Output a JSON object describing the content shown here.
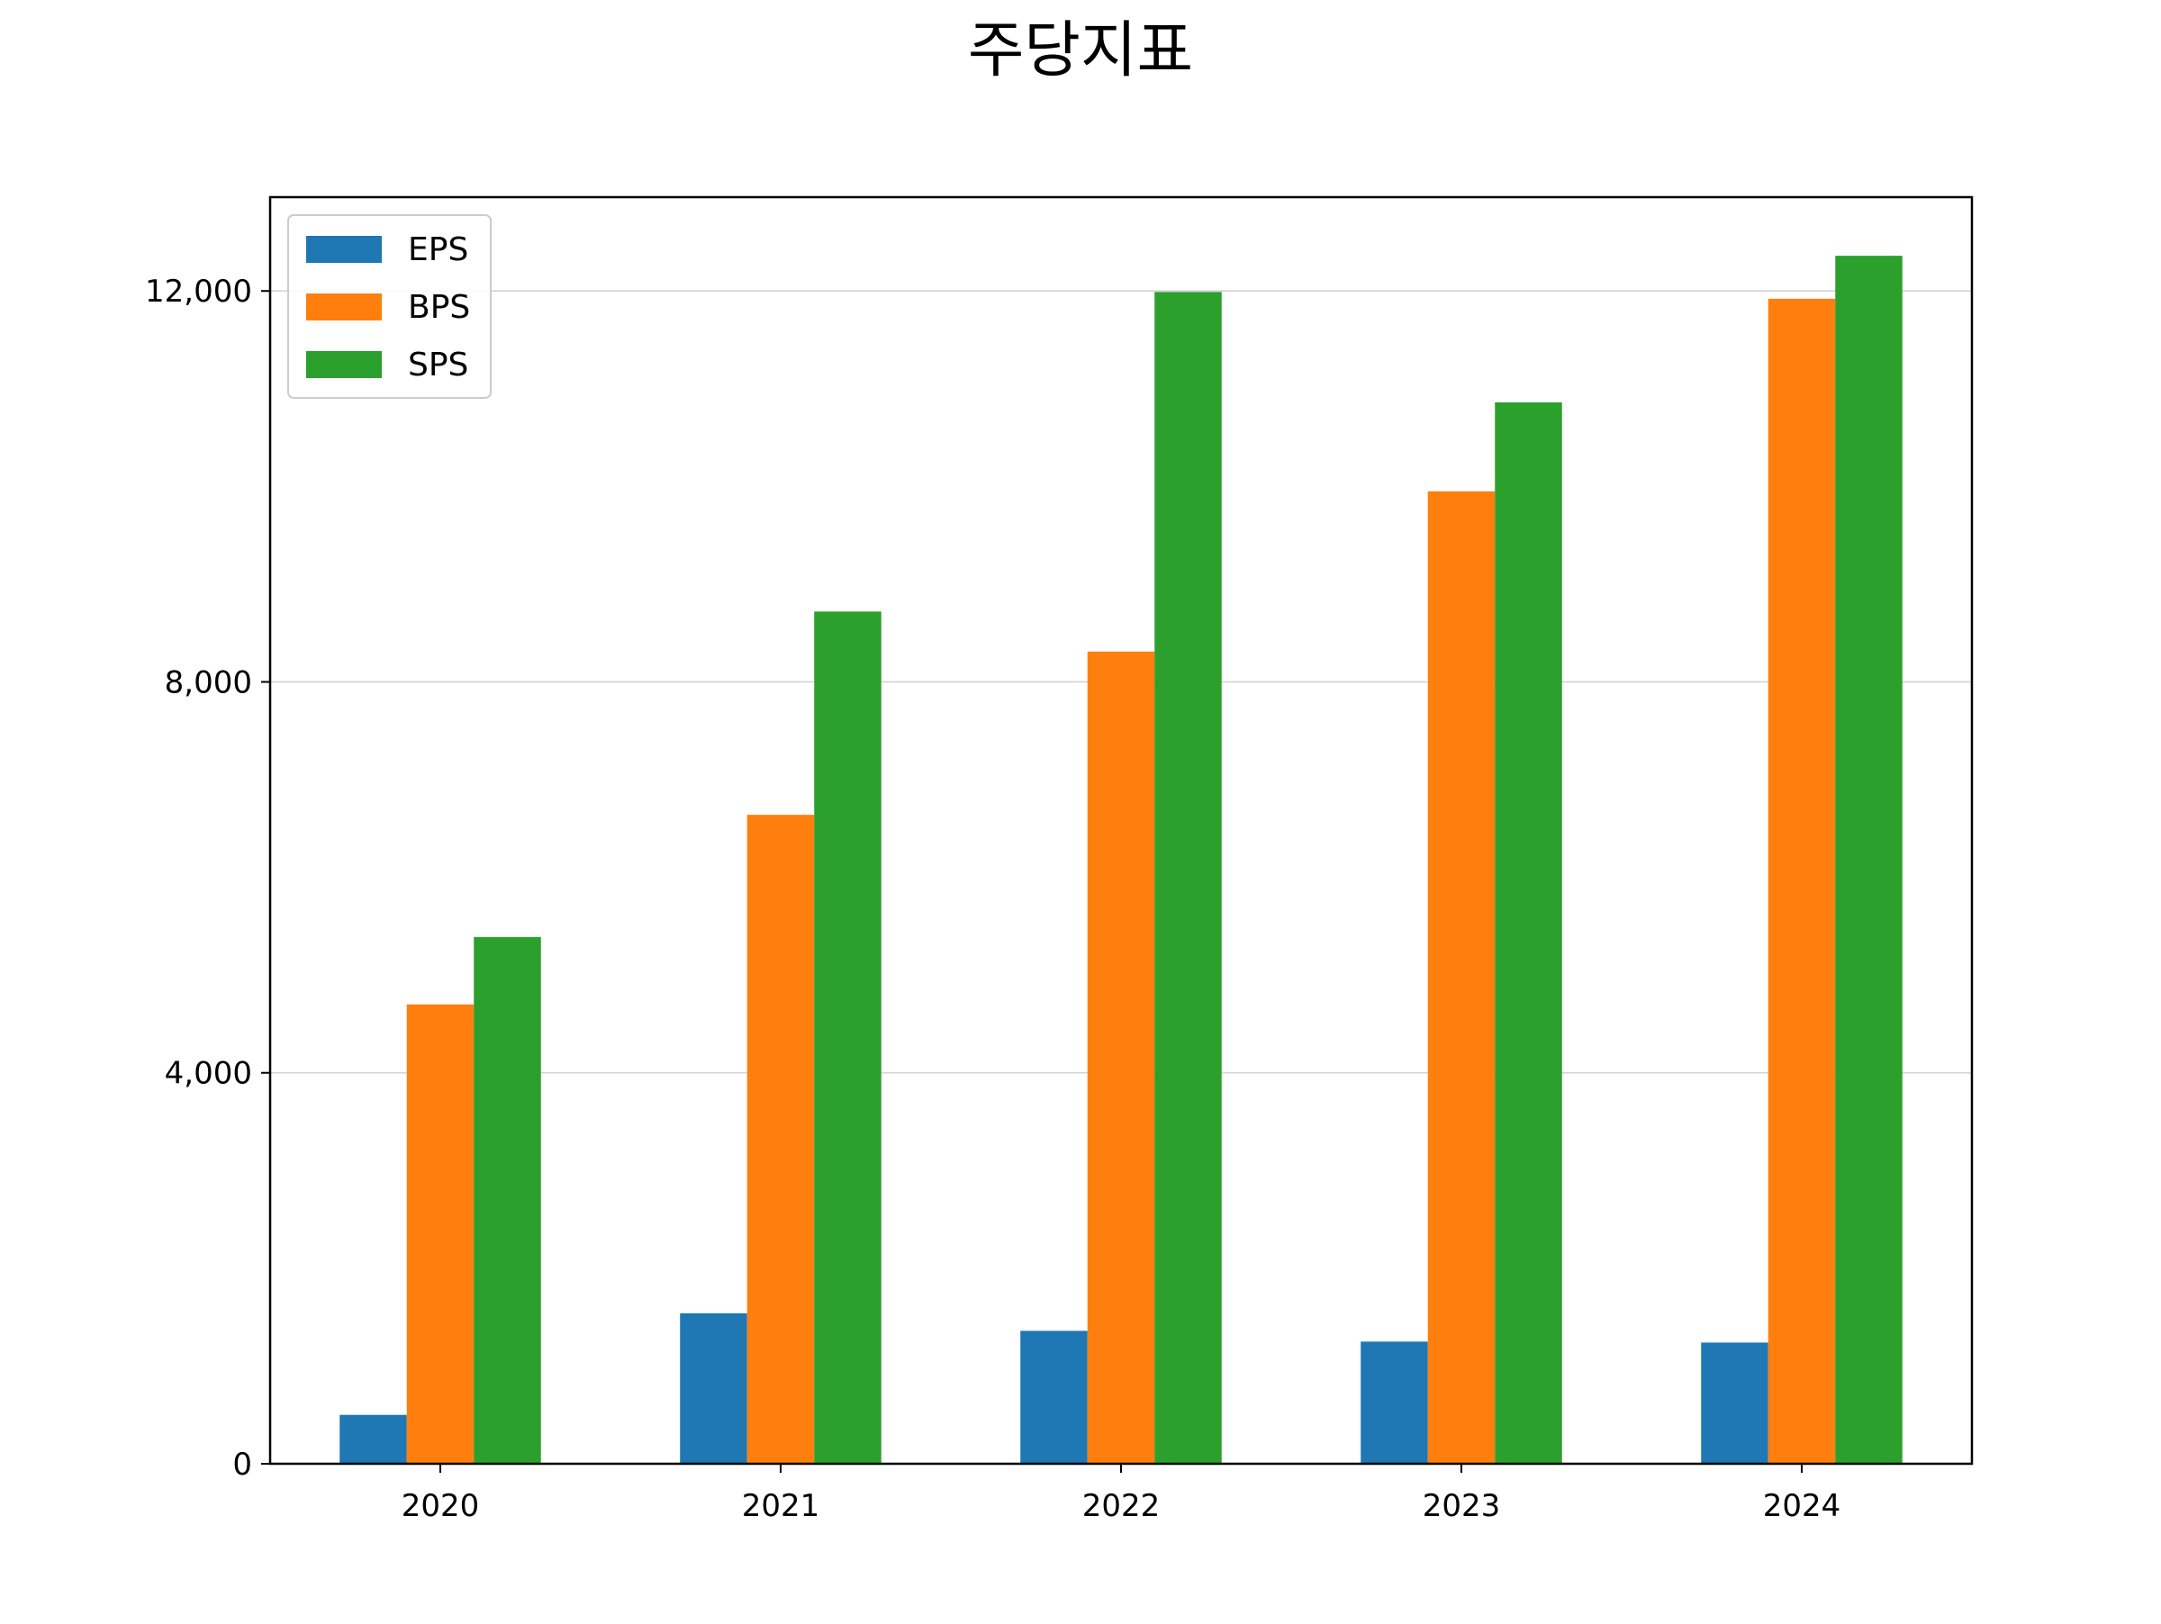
{
  "chart_data": {
    "type": "bar",
    "title": "주당지표",
    "xlabel": "",
    "ylabel": "",
    "categories": [
      "2020",
      "2021",
      "2022",
      "2023",
      "2024"
    ],
    "series": [
      {
        "name": "EPS",
        "color": "#1f77b4",
        "values": [
          500,
          1540,
          1360,
          1250,
          1240
        ]
      },
      {
        "name": "BPS",
        "color": "#ff7f0e",
        "values": [
          4700,
          6640,
          8310,
          9950,
          11920
        ]
      },
      {
        "name": "SPS",
        "color": "#2ca02c",
        "values": [
          5390,
          8720,
          11990,
          10860,
          12360
        ]
      }
    ],
    "ylim": [
      0,
      12960
    ],
    "yticks": [
      0,
      4000,
      8000,
      12000
    ],
    "ytick_labels": [
      "0",
      "4,000",
      "8,000",
      "12,000"
    ],
    "grid": "y",
    "grid_color": "#d3d3d3",
    "legend": "top-left"
  }
}
